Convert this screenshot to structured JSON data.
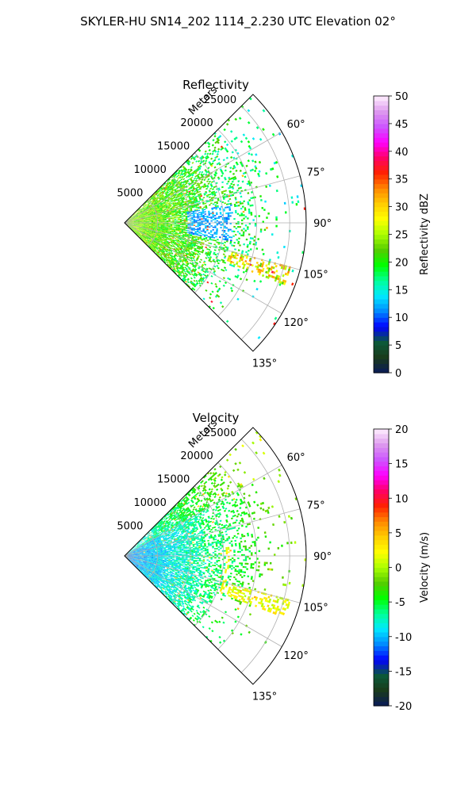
{
  "suptitle": "SKYLER-HU  SN14_202  1114_2.230 UTC Elevation 02°",
  "chart_data": [
    {
      "type": "heatmap",
      "subtype": "polar-sector-radar",
      "title": "Reflectivity",
      "radial_axis_label": "Meters",
      "radial_ticks": [
        "5000",
        "10000",
        "15000",
        "20000",
        "25000"
      ],
      "radial_tick_values": [
        5000,
        10000,
        15000,
        20000,
        25000
      ],
      "radial_range": [
        0,
        27500
      ],
      "angular_ticks": [
        "60°",
        "75°",
        "90°",
        "105°",
        "120°",
        "135°"
      ],
      "angular_tick_values": [
        60,
        75,
        90,
        105,
        120,
        135
      ],
      "angular_range": [
        45,
        135
      ],
      "grid": true,
      "colorbar": {
        "label": "Reflectivity dBZ",
        "range": [
          0,
          50
        ],
        "ticks": [
          "0",
          "5",
          "10",
          "15",
          "20",
          "25",
          "30",
          "35",
          "40",
          "45",
          "50"
        ]
      },
      "dominant_values": "15–25 dBZ near radar, 10–20 dBZ at mid range, scattered 25–40 dBZ returns at 105°–110° and 20000–25000 m"
    },
    {
      "type": "heatmap",
      "subtype": "polar-sector-radar",
      "title": "Velocity",
      "radial_axis_label": "Meters",
      "radial_ticks": [
        "5000",
        "10000",
        "15000",
        "20000",
        "25000"
      ],
      "radial_tick_values": [
        5000,
        10000,
        15000,
        20000,
        25000
      ],
      "radial_range": [
        0,
        27500
      ],
      "angular_ticks": [
        "60°",
        "75°",
        "90°",
        "105°",
        "120°",
        "135°"
      ],
      "angular_tick_values": [
        60,
        75,
        90,
        105,
        120,
        135
      ],
      "angular_range": [
        45,
        135
      ],
      "grid": true,
      "colorbar": {
        "label": "Velocity (m/s)",
        "range": [
          -20,
          20
        ],
        "ticks": [
          "-20",
          "-15",
          "-10",
          "-5",
          "0",
          "5",
          "10",
          "15",
          "20"
        ]
      },
      "dominant_values": "about -10 m/s near radar, -5 to 0 m/s at mid range, 0 to 5 m/s at far range"
    }
  ],
  "colormap_stops": [
    "#0a1a5a",
    "#1a3a1a",
    "#0b5a3a",
    "#0000ff",
    "#0088ff",
    "#00e8ff",
    "#00ff99",
    "#00ff00",
    "#55cc00",
    "#aaff00",
    "#ffff00",
    "#ffcc00",
    "#ff8800",
    "#ff2200",
    "#ff0066",
    "#ff00ff",
    "#cc55ff",
    "#dd99ee",
    "#fff0ff"
  ]
}
